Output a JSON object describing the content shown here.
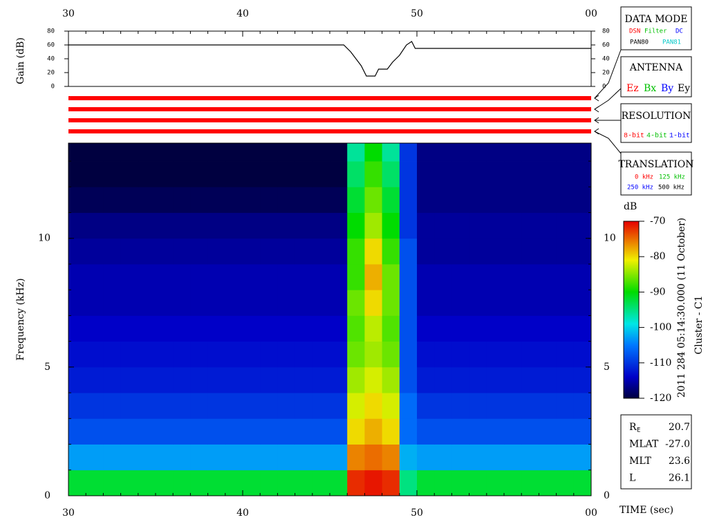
{
  "chart_data": [
    {
      "type": "line",
      "y_label": "Gain (dB)",
      "color": "#000000",
      "x": [
        30,
        45.8,
        46.2,
        46.5,
        46.8,
        47.1,
        47.6,
        47.8,
        48.3,
        48.6,
        49.0,
        49.4,
        49.7,
        49.9,
        60
      ],
      "values": [
        60,
        60,
        50,
        40,
        30,
        15,
        15,
        25,
        25,
        35,
        45,
        60,
        65,
        55,
        55
      ],
      "xlim": [
        30,
        60
      ],
      "xticks": [
        30,
        40,
        50,
        {
          "value": 60,
          "label": "00"
        }
      ],
      "ylim": [
        0,
        80
      ],
      "yticks": [
        0,
        20,
        40,
        60,
        80
      ]
    },
    {
      "type": "heatmap",
      "x_label": "TIME (sec)",
      "y_label": "Frequency (kHz)",
      "x_bins": [
        30,
        31,
        32,
        33,
        34,
        35,
        36,
        37,
        38,
        39,
        40,
        41,
        42,
        43,
        44,
        45,
        46,
        47,
        48,
        49,
        50,
        51,
        52,
        53,
        54,
        55,
        56,
        57,
        58,
        59,
        60
      ],
      "y_bins": [
        0,
        1,
        2,
        3,
        4,
        5,
        6,
        7,
        8,
        9,
        10,
        11,
        12,
        13,
        13.7
      ],
      "z": [
        [
          -92,
          -92,
          -92,
          -92,
          -92,
          -92,
          -92,
          -92,
          -92,
          -92,
          -92,
          -92,
          -92,
          -92,
          -92,
          -92,
          -72,
          -71,
          -72,
          -95,
          -92,
          -92,
          -92,
          -92,
          -92,
          -92,
          -92,
          -92,
          -92,
          -92
        ],
        [
          -103,
          -103,
          -103,
          -103,
          -103,
          -103,
          -103,
          -103,
          -103,
          -103,
          -103,
          -103,
          -103,
          -103,
          -103,
          -103,
          -76,
          -75,
          -76,
          -102,
          -103,
          -103,
          -103,
          -103,
          -103,
          -103,
          -103,
          -103,
          -103,
          -103
        ],
        [
          -108,
          -108,
          -108,
          -108,
          -108,
          -108,
          -108,
          -108,
          -108,
          -108,
          -108,
          -108,
          -108,
          -108,
          -108,
          -108,
          -80,
          -78,
          -80,
          -106,
          -108,
          -108,
          -108,
          -108,
          -108,
          -108,
          -108,
          -108,
          -108,
          -108
        ],
        [
          -110,
          -110,
          -110,
          -110,
          -110,
          -110,
          -110,
          -110,
          -110,
          -110,
          -110,
          -110,
          -110,
          -110,
          -110,
          -110,
          -82,
          -80,
          -82,
          -106,
          -110,
          -110,
          -110,
          -110,
          -110,
          -110,
          -110,
          -110,
          -110,
          -110
        ],
        [
          -112,
          -112,
          -112,
          -112,
          -112,
          -112,
          -112,
          -112,
          -112,
          -112,
          -112,
          -112,
          -112,
          -112,
          -112,
          -112,
          -84,
          -82,
          -84,
          -108,
          -112,
          -112,
          -112,
          -112,
          -112,
          -112,
          -112,
          -112,
          -112,
          -112
        ],
        [
          -113,
          -113,
          -113,
          -113,
          -113,
          -113,
          -113,
          -113,
          -113,
          -113,
          -113,
          -113,
          -113,
          -113,
          -113,
          -113,
          -86,
          -84,
          -86,
          -108,
          -113,
          -113,
          -113,
          -113,
          -113,
          -113,
          -113,
          -113,
          -113,
          -113
        ],
        [
          -114,
          -114,
          -114,
          -114,
          -114,
          -114,
          -114,
          -114,
          -114,
          -114,
          -114,
          -114,
          -114,
          -114,
          -114,
          -114,
          -87,
          -83,
          -87,
          -108,
          -114,
          -114,
          -114,
          -114,
          -114,
          -114,
          -114,
          -114,
          -114,
          -114
        ],
        [
          -115,
          -115,
          -115,
          -115,
          -115,
          -115,
          -115,
          -115,
          -115,
          -115,
          -115,
          -115,
          -115,
          -115,
          -115,
          -115,
          -86,
          -80,
          -86,
          -108,
          -115,
          -115,
          -115,
          -115,
          -115,
          -115,
          -115,
          -115,
          -115,
          -115
        ],
        [
          -115,
          -115,
          -115,
          -115,
          -115,
          -115,
          -115,
          -115,
          -115,
          -115,
          -115,
          -115,
          -115,
          -115,
          -115,
          -115,
          -88,
          -78,
          -86,
          -108,
          -115,
          -115,
          -115,
          -115,
          -115,
          -115,
          -115,
          -115,
          -115,
          -115
        ],
        [
          -116,
          -116,
          -116,
          -116,
          -116,
          -116,
          -116,
          -116,
          -116,
          -116,
          -116,
          -116,
          -116,
          -116,
          -116,
          -116,
          -88,
          -80,
          -88,
          -108,
          -116,
          -116,
          -116,
          -116,
          -116,
          -116,
          -116,
          -116,
          -116,
          -116
        ],
        [
          -117,
          -117,
          -117,
          -117,
          -117,
          -117,
          -117,
          -117,
          -117,
          -117,
          -117,
          -117,
          -117,
          -117,
          -117,
          -117,
          -90,
          -84,
          -90,
          -110,
          -116,
          -116,
          -116,
          -116,
          -116,
          -116,
          -116,
          -116,
          -116,
          -116
        ],
        [
          -119,
          -119,
          -119,
          -119,
          -119,
          -119,
          -119,
          -119,
          -119,
          -119,
          -119,
          -119,
          -119,
          -119,
          -119,
          -119,
          -92,
          -86,
          -92,
          -110,
          -117,
          -117,
          -117,
          -117,
          -117,
          -117,
          -117,
          -117,
          -117,
          -117
        ],
        [
          -120,
          -120,
          -120,
          -120,
          -120,
          -120,
          -120,
          -120,
          -120,
          -120,
          -120,
          -120,
          -120,
          -120,
          -120,
          -120,
          -94,
          -88,
          -94,
          -110,
          -117,
          -117,
          -117,
          -117,
          -117,
          -117,
          -117,
          -117,
          -117,
          -117
        ],
        [
          -120,
          -120,
          -120,
          -120,
          -120,
          -120,
          -120,
          -120,
          -120,
          -120,
          -120,
          -120,
          -120,
          -120,
          -120,
          -120,
          -96,
          -90,
          -96,
          -110,
          -117,
          -117,
          -117,
          -117,
          -117,
          -117,
          -117,
          -117,
          -117,
          -117
        ]
      ],
      "xlim": [
        30,
        60
      ],
      "xticks": [
        30,
        40,
        50,
        {
          "value": 60,
          "label": "00"
        }
      ],
      "ylim": [
        0,
        13.7
      ],
      "yticks": [
        0,
        5,
        10
      ],
      "colorbar": {
        "label": "dB",
        "lim": [
          -120,
          -70
        ],
        "ticks": [
          -120,
          -110,
          -100,
          -90,
          -80,
          -70
        ]
      },
      "annotations": [
        "2011 284 05:14:30.000 (11 October)",
        "Cluster - C1"
      ]
    }
  ],
  "status": {
    "data_mode": {
      "title": "DATA MODE",
      "options": [
        [
          "DSN",
          "Filter",
          "DC"
        ],
        [
          "PAN80",
          "PAN81"
        ]
      ]
    },
    "antenna": {
      "title": "ANTENNA",
      "options": [
        "Ez",
        "Bx",
        "By",
        "Ey"
      ]
    },
    "resolution": {
      "title": "RESOLUTION",
      "options": [
        "8-bit",
        "4-bit",
        "1-bit"
      ]
    },
    "translation": {
      "title": "TRANSLATION",
      "options": [
        [
          "0 kHz",
          "125 kHz"
        ],
        [
          "250 kHz",
          "500 kHz"
        ]
      ]
    }
  },
  "orbit": [
    {
      "label": "R",
      "sub": "E",
      "value": "20.7"
    },
    {
      "label": "MLAT",
      "value": "-27.0"
    },
    {
      "label": "MLT",
      "value": "23.6"
    },
    {
      "label": "L",
      "value": "26.1"
    }
  ]
}
